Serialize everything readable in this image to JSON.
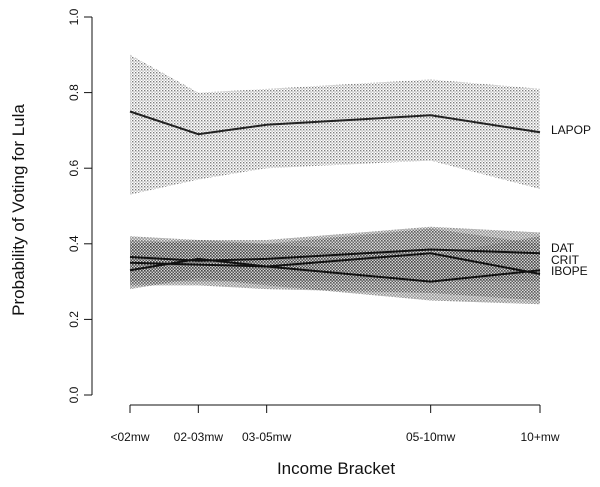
{
  "chart_data": {
    "type": "line",
    "xlabel": "Income Bracket",
    "ylabel": "Probability of Voting for Lula",
    "ylim": [
      0.0,
      1.0
    ],
    "yticks": [
      "0.0",
      "0.2",
      "0.4",
      "0.6",
      "0.8",
      "1.0"
    ],
    "categories": [
      "<02mw",
      "02-03mw",
      "03-05mw",
      "05-10mw",
      "10+mw"
    ],
    "x_positions": [
      1,
      2,
      3,
      5.4,
      7
    ],
    "grid": false,
    "series": [
      {
        "name": "LAPOP",
        "values": [
          0.75,
          0.69,
          0.715,
          0.74,
          0.695
        ],
        "lower": [
          0.53,
          0.57,
          0.6,
          0.62,
          0.545
        ],
        "upper": [
          0.9,
          0.8,
          0.81,
          0.835,
          0.81
        ],
        "band_color": "#9c9c9c",
        "line_color": "#222222"
      },
      {
        "name": "DAT",
        "values": [
          0.365,
          0.355,
          0.36,
          0.385,
          0.375
        ],
        "lower": [
          0.3,
          0.3,
          0.3,
          0.3,
          0.3
        ],
        "upper": [
          0.42,
          0.41,
          0.41,
          0.445,
          0.43
        ],
        "band_color": "#555555",
        "line_color": "#111111"
      },
      {
        "name": "CRIT",
        "values": [
          0.35,
          0.345,
          0.34,
          0.375,
          0.32
        ],
        "lower": [
          0.29,
          0.29,
          0.28,
          0.27,
          0.25
        ],
        "upper": [
          0.41,
          0.4,
          0.4,
          0.44,
          0.4
        ],
        "band_color": "#6a6a6a",
        "line_color": "#111111"
      },
      {
        "name": "IBOPE",
        "values": [
          0.33,
          0.36,
          0.34,
          0.3,
          0.33
        ],
        "lower": [
          0.28,
          0.31,
          0.29,
          0.25,
          0.24
        ],
        "upper": [
          0.4,
          0.41,
          0.4,
          0.37,
          0.42
        ],
        "band_color": "#777777",
        "line_color": "#111111"
      }
    ]
  }
}
